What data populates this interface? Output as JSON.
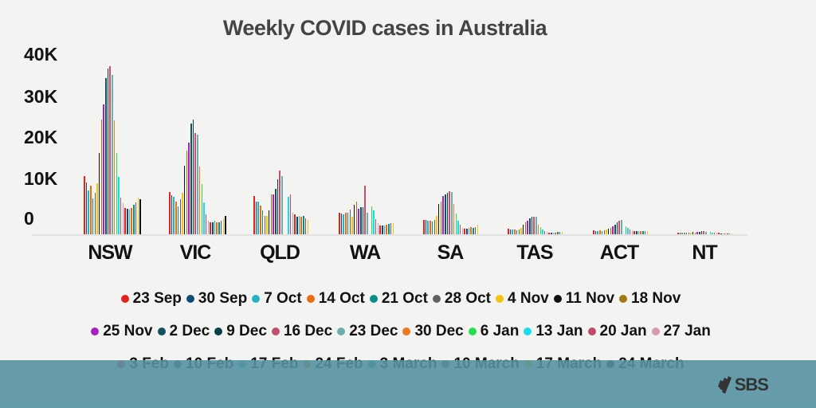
{
  "chart_data": {
    "type": "bar",
    "title": "Weekly COVID cases in Australia",
    "xlabel": "",
    "ylabel": "",
    "ylim": [
      0,
      40000
    ],
    "yticks": [
      "0",
      "10K",
      "20K",
      "30K",
      "40K"
    ],
    "grid": false,
    "legend_position": "bottom",
    "categories": [
      "NSW",
      "VIC",
      "QLD",
      "WA",
      "SA",
      "TAS",
      "ACT",
      "NT"
    ],
    "series": [
      {
        "name": "23 Sep",
        "color": "#e3231b",
        "values": [
          14200,
          10300,
          9300,
          5300,
          3500,
          1300,
          900,
          300
        ]
      },
      {
        "name": "30 Sep",
        "color": "#0f4c75",
        "values": [
          12700,
          9600,
          8000,
          5000,
          3600,
          1200,
          800,
          300
        ]
      },
      {
        "name": "7 Oct",
        "color": "#2ab0c5",
        "values": [
          10700,
          9200,
          8000,
          4900,
          3300,
          1100,
          800,
          300
        ]
      },
      {
        "name": "14 Oct",
        "color": "#ea6b10",
        "values": [
          11900,
          8000,
          7100,
          5200,
          3300,
          1100,
          900,
          300
        ]
      },
      {
        "name": "21 Oct",
        "color": "#0c8c86",
        "values": [
          8800,
          6800,
          5800,
          5200,
          3100,
          1000,
          800,
          300
        ]
      },
      {
        "name": "28 Oct",
        "color": "#616161",
        "values": [
          10200,
          8600,
          4500,
          6000,
          3500,
          1200,
          900,
          300
        ]
      },
      {
        "name": "4 Nov",
        "color": "#f1c40f",
        "values": [
          12500,
          10100,
          4400,
          4300,
          4500,
          1500,
          1100,
          400
        ]
      },
      {
        "name": "11 Nov",
        "color": "#111111",
        "values": [
          19900,
          16800,
          5800,
          7200,
          7400,
          2400,
          1400,
          500
        ]
      },
      {
        "name": "18 Nov",
        "color": "#a07a12",
        "values": [
          28100,
          20500,
          9800,
          8000,
          8000,
          2900,
          1600,
          400
        ]
      },
      {
        "name": "25 Nov",
        "color": "#a820c2",
        "values": [
          31800,
          22400,
          9800,
          6200,
          9300,
          3300,
          2000,
          500
        ]
      },
      {
        "name": "2 Dec",
        "color": "#134f5c",
        "values": [
          38200,
          27100,
          11100,
          6700,
          9800,
          3900,
          2400,
          600
        ]
      },
      {
        "name": "9 Dec",
        "color": "#0b3d4a",
        "values": [
          40600,
          28100,
          13500,
          6700,
          10200,
          4300,
          2900,
          700
        ]
      },
      {
        "name": "16 Dec",
        "color": "#c2506b",
        "values": [
          41200,
          24800,
          15600,
          12000,
          10600,
          4300,
          3400,
          700
        ]
      },
      {
        "name": "23 Dec",
        "color": "#6aaeb0",
        "values": [
          39000,
          24400,
          14200,
          5200,
          10300,
          4200,
          3600,
          600
        ]
      },
      {
        "name": "30 Dec",
        "color": "#ee7a1a",
        "values": [
          27900,
          16600,
          0,
          0,
          7400,
          2400,
          0,
          0
        ]
      },
      {
        "name": "6 Jan",
        "color": "#25e04e",
        "values": [
          19900,
          12300,
          0,
          6800,
          5000,
          1700,
          2000,
          500
        ]
      },
      {
        "name": "13 Jan",
        "color": "#18dced",
        "values": [
          14000,
          7800,
          9200,
          5800,
          3400,
          1200,
          1500,
          400
        ]
      },
      {
        "name": "20 Jan",
        "color": "#c04a6a",
        "values": [
          9000,
          4900,
          9800,
          3800,
          2300,
          800,
          1200,
          400
        ]
      },
      {
        "name": "27 Jan",
        "color": "#d89ab0",
        "values": [
          7600,
          3300,
          5200,
          2700,
          1500,
          500,
          900,
          300
        ]
      },
      {
        "name": "3 Feb",
        "color": "#e3231b",
        "values": [
          6400,
          2900,
          4800,
          2200,
          1300,
          400,
          800,
          300
        ]
      },
      {
        "name": "10 Feb",
        "color": "#0f4c75",
        "values": [
          6200,
          2900,
          4300,
          2200,
          1400,
          400,
          800,
          200
        ]
      },
      {
        "name": "17 Feb",
        "color": "#2ab0c5",
        "values": [
          6000,
          3300,
          4500,
          2200,
          1600,
          400,
          800,
          200
        ]
      },
      {
        "name": "24 Feb",
        "color": "#ea6b10",
        "values": [
          6400,
          2900,
          4300,
          2400,
          1700,
          400,
          800,
          200
        ]
      },
      {
        "name": "3 March",
        "color": "#0c8c86",
        "values": [
          7200,
          2900,
          4500,
          2500,
          1600,
          500,
          700,
          200
        ]
      },
      {
        "name": "10 March",
        "color": "#616161",
        "values": [
          7800,
          3300,
          4000,
          2700,
          1800,
          500,
          800,
          200
        ]
      },
      {
        "name": "17 March",
        "color": "#f1c40f",
        "values": [
          9000,
          3900,
          3500,
          2700,
          2300,
          500,
          700,
          200
        ]
      },
      {
        "name": "24 March",
        "color": "#111111",
        "values": [
          8600,
          4500,
          0,
          0,
          0,
          0,
          0,
          0
        ]
      }
    ]
  },
  "header": {
    "title": "Weekly COVID cases in Australia"
  },
  "y_axis": {
    "ticks": [
      "40K",
      "30K",
      "20K",
      "10K",
      "0"
    ]
  },
  "x_axis": {
    "labels": [
      "NSW",
      "VIC",
      "QLD",
      "WA",
      "SA",
      "TAS",
      "ACT",
      "NT"
    ]
  },
  "legend": {
    "rows": [
      [
        0,
        1,
        2,
        3,
        4,
        5,
        6,
        7,
        8
      ],
      [
        9,
        10,
        11,
        12,
        13,
        14,
        15,
        16,
        17,
        18
      ],
      [
        19,
        20,
        21,
        22,
        23,
        24,
        25,
        26
      ]
    ]
  },
  "footer": {
    "logo_text": "SBS",
    "band_color": "#5692a2"
  }
}
